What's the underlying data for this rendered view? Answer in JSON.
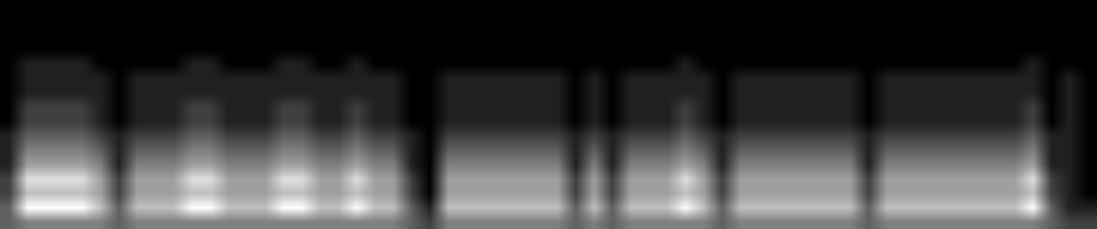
{
  "chart_data": {
    "type": "heatmap",
    "tick_labels": false,
    "colors": [
      "#000000",
      "#ffffff"
    ],
    "cells": [
      [
        3,
        4,
        4,
        4,
        4,
        4,
        3,
        4,
        4,
        4,
        4,
        4,
        4,
        4,
        4,
        4,
        4,
        4,
        4,
        4,
        4,
        4,
        3,
        2,
        4,
        4,
        4,
        4,
        4,
        4,
        4,
        3,
        4,
        3,
        4,
        4,
        4,
        4,
        4,
        3,
        4,
        4,
        4,
        4,
        4,
        4,
        4,
        3,
        4,
        4,
        4,
        4,
        4,
        4,
        4,
        4,
        4,
        3,
        2,
        2
      ],
      [
        3,
        8,
        8,
        8,
        8,
        6,
        3,
        6,
        6,
        6,
        8,
        8,
        6,
        6,
        6,
        8,
        8,
        6,
        6,
        8,
        6,
        6,
        3,
        1,
        6,
        6,
        6,
        6,
        6,
        6,
        6,
        3,
        6,
        3,
        6,
        6,
        6,
        8,
        6,
        3,
        6,
        6,
        6,
        6,
        6,
        6,
        6,
        3,
        6,
        6,
        6,
        6,
        6,
        6,
        6,
        6,
        8,
        3,
        1,
        1
      ],
      [
        2,
        6,
        6,
        6,
        6,
        5,
        2,
        5,
        5,
        5,
        6,
        6,
        5,
        5,
        5,
        6,
        6,
        5,
        5,
        6,
        5,
        5,
        2,
        0,
        5,
        5,
        5,
        5,
        5,
        5,
        5,
        2,
        5,
        2,
        5,
        5,
        5,
        6,
        5,
        2,
        5,
        5,
        5,
        5,
        5,
        5,
        5,
        2,
        5,
        5,
        5,
        5,
        5,
        5,
        5,
        5,
        6,
        2,
        1,
        0
      ],
      [
        2,
        7,
        7,
        7,
        7,
        5,
        2,
        5,
        5,
        5,
        7,
        7,
        5,
        5,
        5,
        7,
        7,
        5,
        5,
        7,
        5,
        5,
        2,
        0,
        5,
        5,
        5,
        5,
        5,
        5,
        5,
        2,
        5,
        2,
        5,
        5,
        5,
        7,
        5,
        2,
        5,
        5,
        5,
        5,
        5,
        5,
        5,
        2,
        5,
        5,
        5,
        5,
        5,
        5,
        5,
        5,
        7,
        2,
        1,
        0
      ],
      [
        1,
        5,
        5,
        5,
        5,
        4,
        1,
        4,
        4,
        4,
        5,
        5,
        4,
        4,
        4,
        5,
        5,
        4,
        4,
        5,
        4,
        4,
        1,
        0,
        4,
        4,
        4,
        4,
        4,
        4,
        4,
        1,
        4,
        1,
        4,
        4,
        4,
        5,
        4,
        1,
        4,
        4,
        4,
        4,
        4,
        4,
        4,
        1,
        4,
        4,
        4,
        4,
        4,
        4,
        4,
        4,
        5,
        1,
        1,
        0
      ],
      [
        1,
        4,
        4,
        4,
        4,
        3,
        1,
        3,
        3,
        3,
        4,
        4,
        3,
        3,
        3,
        4,
        4,
        3,
        3,
        4,
        3,
        3,
        1,
        0,
        3,
        3,
        3,
        3,
        3,
        3,
        3,
        1,
        3,
        1,
        3,
        3,
        3,
        4,
        3,
        1,
        3,
        3,
        3,
        3,
        3,
        3,
        3,
        1,
        3,
        3,
        3,
        3,
        3,
        3,
        3,
        3,
        4,
        1,
        1,
        0
      ],
      [
        1,
        3,
        3,
        3,
        3,
        2,
        1,
        2,
        2,
        2,
        3,
        3,
        2,
        2,
        2,
        3,
        3,
        2,
        2,
        3,
        2,
        2,
        1,
        0,
        2,
        2,
        2,
        2,
        2,
        2,
        2,
        1,
        2,
        1,
        2,
        2,
        2,
        3,
        2,
        1,
        2,
        2,
        2,
        2,
        2,
        2,
        2,
        1,
        2,
        2,
        2,
        2,
        2,
        2,
        2,
        2,
        3,
        1,
        1,
        0
      ],
      [
        0,
        2,
        2,
        2,
        2,
        1,
        0,
        1,
        1,
        1,
        2,
        2,
        1,
        1,
        1,
        2,
        2,
        1,
        1,
        2,
        1,
        1,
        0,
        0,
        1,
        1,
        1,
        1,
        1,
        1,
        1,
        0,
        1,
        0,
        1,
        1,
        1,
        2,
        1,
        0,
        1,
        1,
        1,
        1,
        1,
        1,
        1,
        0,
        1,
        1,
        1,
        1,
        1,
        1,
        1,
        1,
        2,
        0,
        1,
        0
      ],
      [
        0,
        2,
        2,
        2,
        2,
        1,
        0,
        1,
        1,
        1,
        2,
        2,
        1,
        1,
        1,
        2,
        2,
        1,
        1,
        2,
        1,
        1,
        0,
        0,
        1,
        1,
        1,
        1,
        1,
        1,
        1,
        0,
        1,
        0,
        1,
        1,
        1,
        2,
        1,
        0,
        1,
        1,
        1,
        1,
        1,
        1,
        1,
        0,
        1,
        1,
        1,
        1,
        1,
        1,
        1,
        1,
        2,
        0,
        1,
        0
      ],
      [
        0,
        1,
        1,
        1,
        1,
        1,
        0,
        1,
        1,
        1,
        1,
        1,
        1,
        1,
        1,
        1,
        1,
        1,
        1,
        1,
        1,
        1,
        0,
        0,
        1,
        1,
        1,
        1,
        1,
        1,
        1,
        0,
        1,
        0,
        1,
        1,
        1,
        1,
        1,
        0,
        1,
        1,
        1,
        1,
        1,
        1,
        1,
        0,
        1,
        1,
        1,
        1,
        1,
        1,
        1,
        1,
        1,
        0,
        1,
        0
      ],
      [
        0,
        1,
        1,
        1,
        1,
        1,
        0,
        1,
        1,
        1,
        1,
        1,
        1,
        1,
        1,
        1,
        1,
        1,
        1,
        1,
        1,
        1,
        0,
        0,
        1,
        1,
        1,
        1,
        1,
        1,
        1,
        0,
        1,
        0,
        1,
        1,
        1,
        1,
        1,
        0,
        1,
        1,
        1,
        1,
        1,
        1,
        1,
        0,
        1,
        1,
        1,
        1,
        1,
        1,
        1,
        1,
        1,
        0,
        1,
        0
      ],
      [
        0,
        1,
        1,
        1,
        1,
        0,
        0,
        0,
        0,
        0,
        1,
        1,
        0,
        0,
        0,
        1,
        1,
        0,
        0,
        1,
        0,
        0,
        0,
        0,
        0,
        0,
        0,
        0,
        0,
        0,
        0,
        0,
        0,
        0,
        0,
        0,
        0,
        1,
        0,
        0,
        0,
        0,
        0,
        0,
        0,
        0,
        0,
        0,
        0,
        0,
        0,
        0,
        0,
        0,
        0,
        0,
        1,
        0,
        0,
        0
      ],
      [
        0,
        0,
        0,
        0,
        0,
        0,
        0,
        0,
        0,
        0,
        0,
        0,
        0,
        0,
        0,
        0,
        0,
        0,
        0,
        0,
        0,
        0,
        0,
        0,
        0,
        0,
        0,
        0,
        0,
        0,
        0,
        0,
        0,
        0,
        0,
        0,
        0,
        0,
        0,
        0,
        0,
        0,
        0,
        0,
        0,
        0,
        0,
        0,
        0,
        0,
        0,
        0,
        0,
        0,
        0,
        0,
        0,
        0,
        0,
        0
      ],
      [
        0,
        0,
        0,
        0,
        0,
        0,
        0,
        0,
        0,
        0,
        0,
        0,
        0,
        0,
        0,
        0,
        0,
        0,
        0,
        0,
        0,
        0,
        0,
        0,
        0,
        0,
        0,
        0,
        0,
        0,
        0,
        0,
        0,
        0,
        0,
        0,
        0,
        0,
        0,
        0,
        0,
        0,
        0,
        0,
        0,
        0,
        0,
        0,
        0,
        0,
        0,
        0,
        0,
        0,
        0,
        0,
        0,
        0,
        0,
        0
      ],
      [
        0,
        0,
        0,
        0,
        0,
        0,
        0,
        0,
        0,
        0,
        0,
        0,
        0,
        0,
        0,
        0,
        0,
        0,
        0,
        0,
        0,
        0,
        0,
        0,
        0,
        0,
        0,
        0,
        0,
        0,
        0,
        0,
        0,
        0,
        0,
        0,
        0,
        0,
        0,
        0,
        0,
        0,
        0,
        0,
        0,
        0,
        0,
        0,
        0,
        0,
        0,
        0,
        0,
        0,
        0,
        0,
        0,
        0,
        0,
        0
      ],
      [
        0,
        0,
        0,
        0,
        0,
        0,
        0,
        0,
        0,
        0,
        0,
        0,
        0,
        0,
        0,
        0,
        0,
        0,
        0,
        0,
        0,
        0,
        0,
        0,
        0,
        0,
        0,
        0,
        0,
        0,
        0,
        0,
        0,
        0,
        0,
        0,
        0,
        0,
        0,
        0,
        0,
        0,
        0,
        0,
        0,
        0,
        0,
        0,
        0,
        0,
        0,
        0,
        0,
        0,
        0,
        0,
        0,
        0,
        0,
        0
      ]
    ]
  }
}
